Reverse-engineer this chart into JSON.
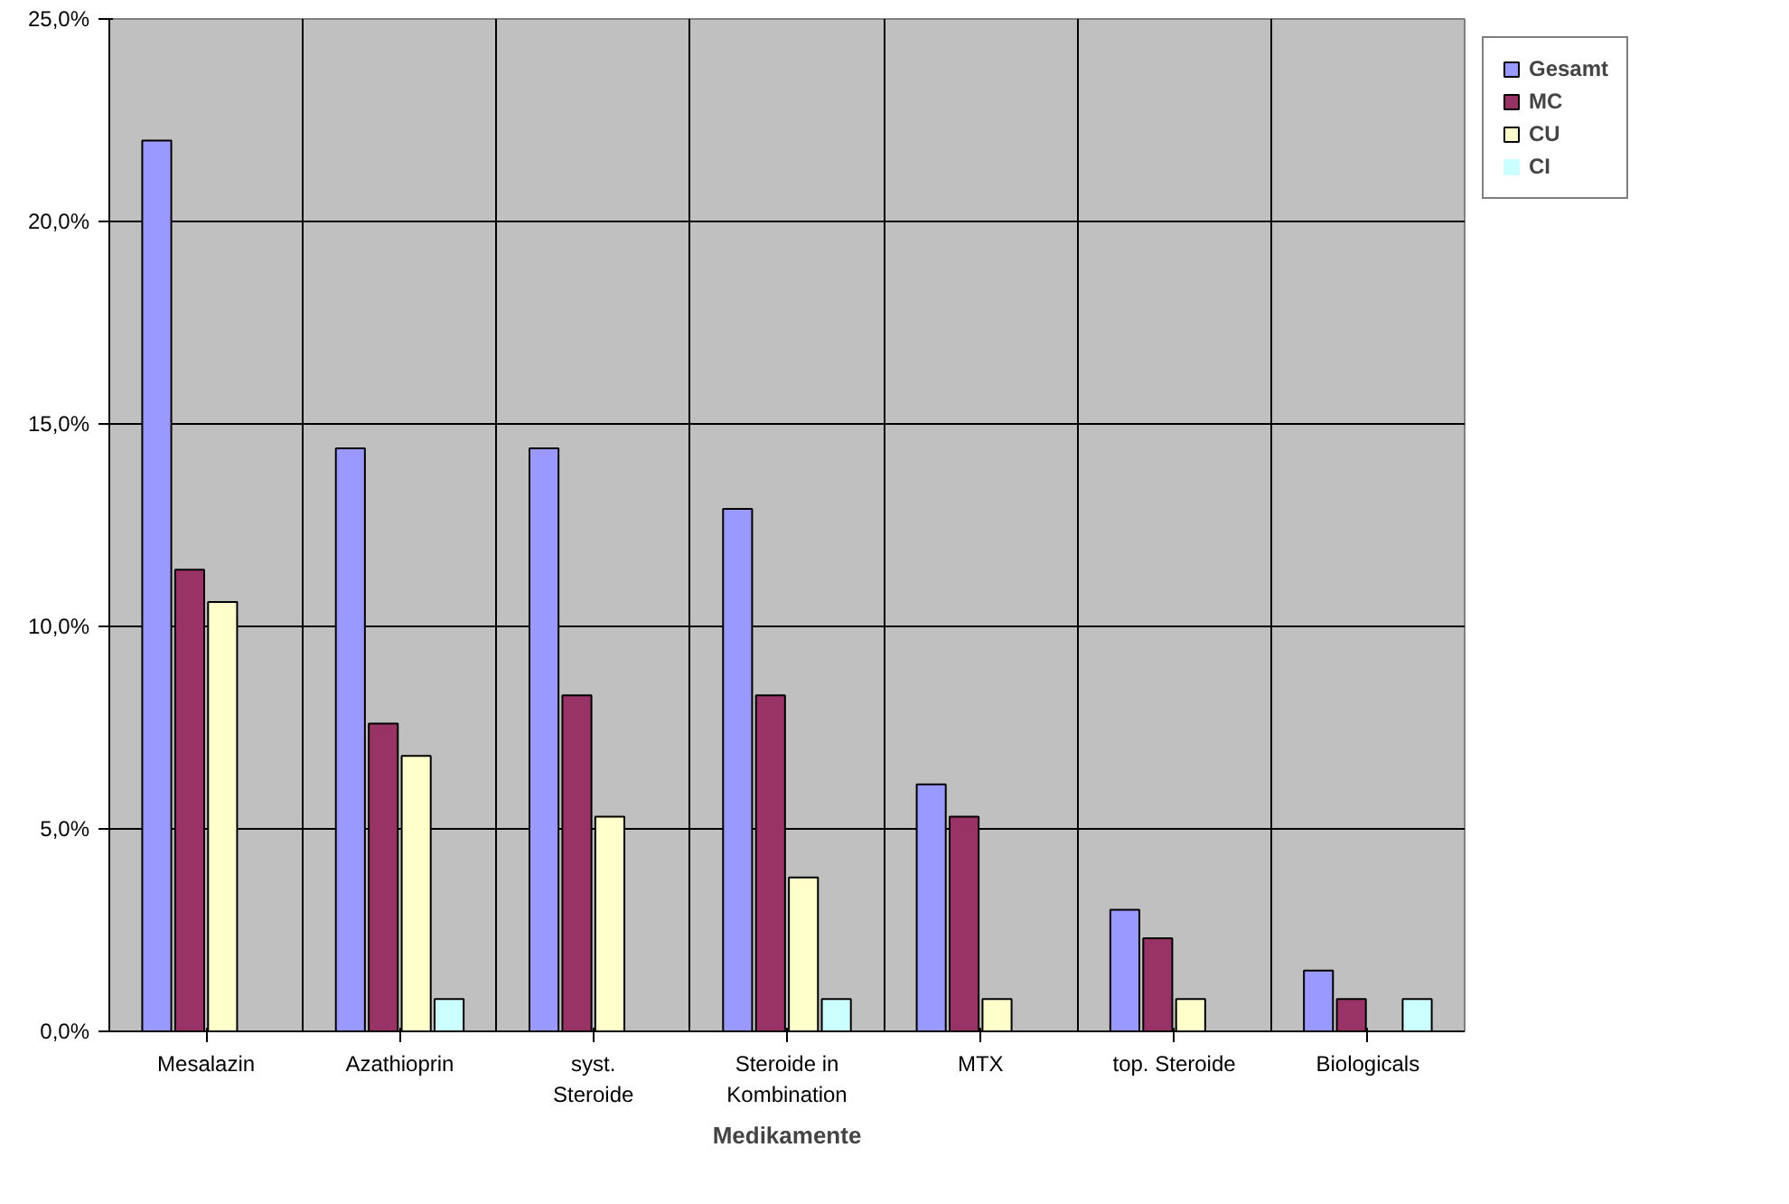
{
  "chart_data": {
    "type": "bar",
    "xlabel": "Medikamente",
    "categories": [
      "Mesalazin",
      "Azathioprin",
      "syst. Steroide",
      "Steroide in Kombination",
      "MTX",
      "top. Steroide",
      "Biologicals"
    ],
    "series": [
      {
        "name": "Gesamt",
        "color": "#9999ff",
        "values": [
          22.0,
          14.4,
          14.4,
          12.9,
          6.1,
          3.0,
          1.5
        ]
      },
      {
        "name": "MC",
        "color": "#993366",
        "values": [
          11.4,
          7.6,
          8.3,
          8.3,
          5.3,
          2.3,
          0.8
        ]
      },
      {
        "name": "CU",
        "color": "#ffffcc",
        "values": [
          10.6,
          6.8,
          5.3,
          3.8,
          0.8,
          0.8,
          0.0
        ]
      },
      {
        "name": "CI",
        "color": "#ccffff",
        "values": [
          0.0,
          0.8,
          0.0,
          0.8,
          0.0,
          0.0,
          0.8
        ]
      }
    ],
    "ylim": [
      0,
      25
    ],
    "yticks": [
      {
        "value": 0,
        "label": "0,0%"
      },
      {
        "value": 5,
        "label": "5,0%"
      },
      {
        "value": 10,
        "label": "10,0%"
      },
      {
        "value": 15,
        "label": "15,0%"
      },
      {
        "value": 20,
        "label": "20,0%"
      },
      {
        "value": 25,
        "label": "25,0%"
      }
    ],
    "grid": true,
    "legend": "top right"
  }
}
